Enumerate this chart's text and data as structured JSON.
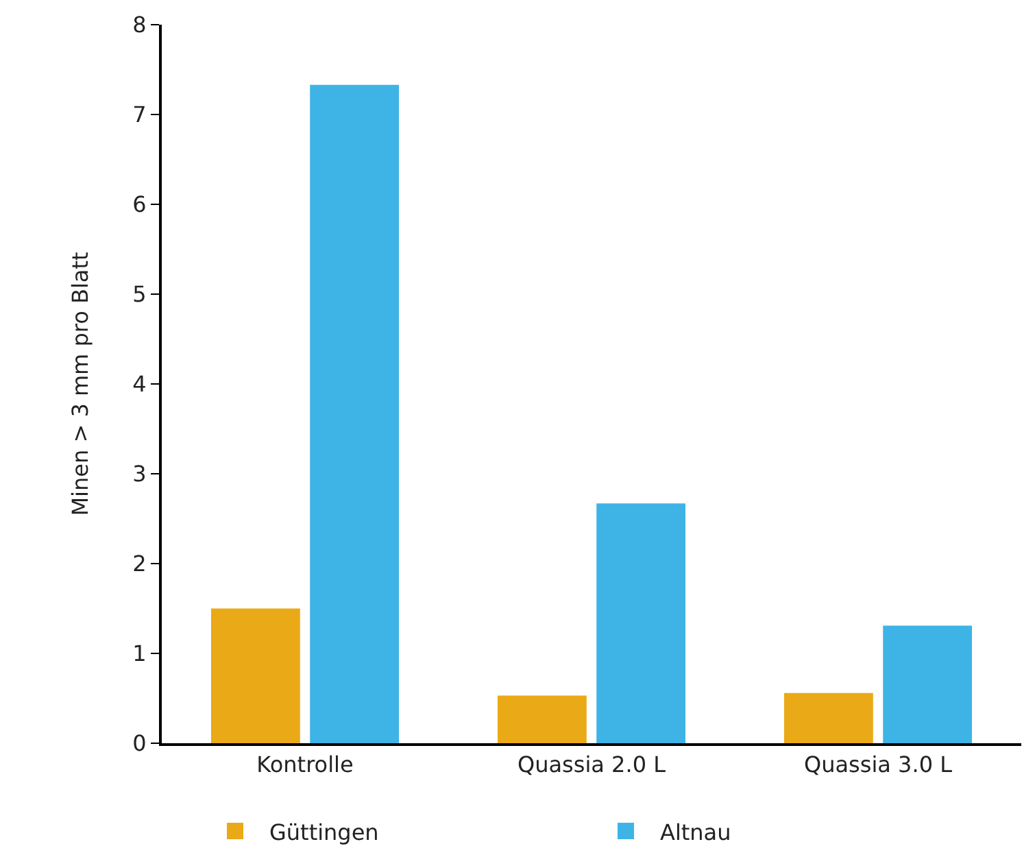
{
  "chart_data": {
    "type": "bar",
    "ylabel": "Minen > 3 mm pro Blatt",
    "categories": [
      "Kontrolle",
      "Quassia 2.0 L",
      "Quassia 3.0 L"
    ],
    "series": [
      {
        "name": "Güttingen",
        "color": "#eaa916",
        "values": [
          1.5,
          0.53,
          0.56
        ]
      },
      {
        "name": "Altnau",
        "color": "#3eb4e6",
        "values": [
          7.33,
          2.67,
          1.31
        ]
      }
    ],
    "ylim": [
      0,
      8
    ],
    "yticks": [
      0,
      1,
      2,
      3,
      4,
      5,
      6,
      7,
      8
    ],
    "grid": false,
    "legend": "bottom"
  }
}
